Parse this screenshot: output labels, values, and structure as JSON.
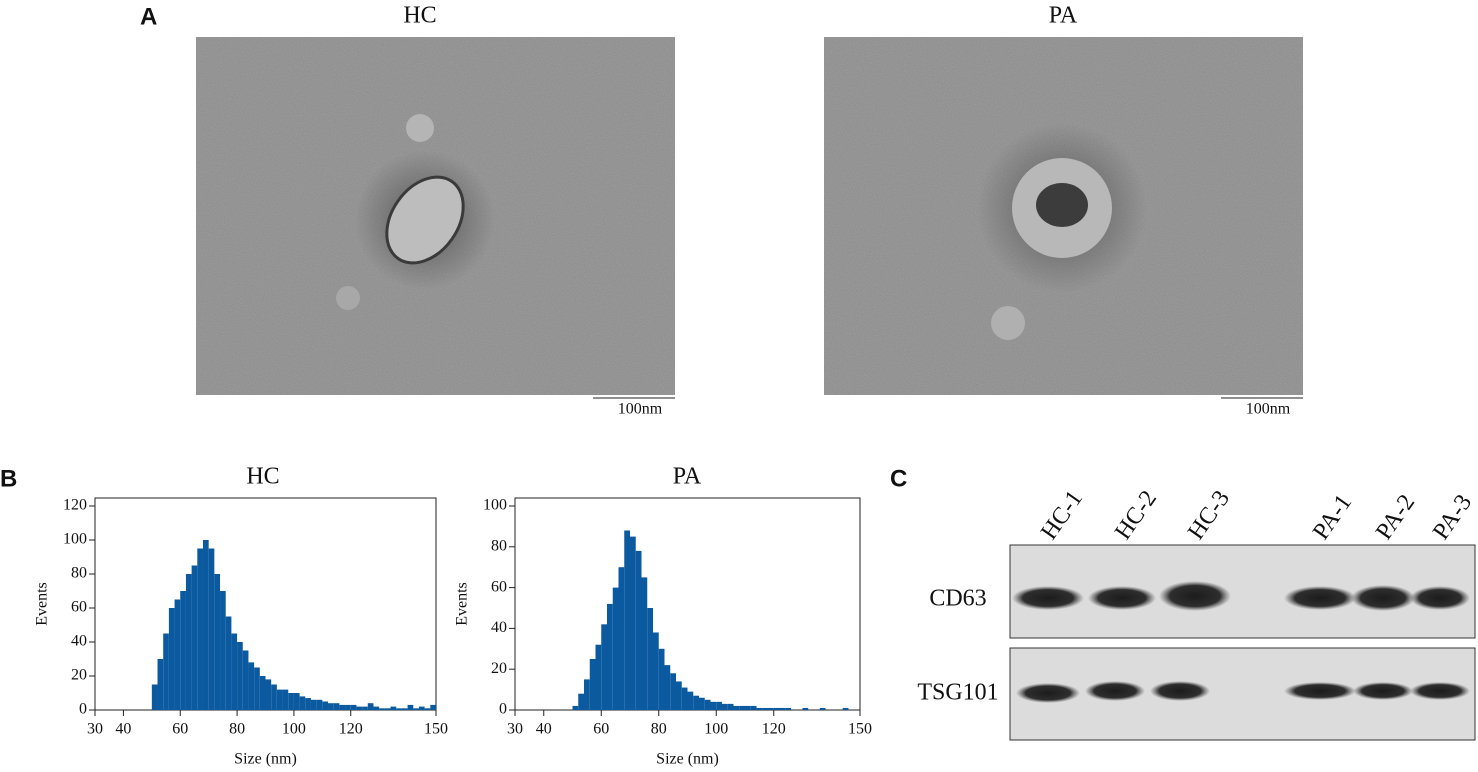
{
  "panels": {
    "a": {
      "label": "A",
      "images": [
        {
          "title": "HC",
          "scale_bar": "100nm"
        },
        {
          "title": "PA",
          "scale_bar": "100nm"
        }
      ]
    },
    "b": {
      "label": "B"
    },
    "c": {
      "label": "C",
      "lanes": [
        "HC-1",
        "HC-2",
        "HC-3",
        "PA-1",
        "PA-2",
        "PA-3"
      ],
      "rows": [
        "CD63",
        "TSG101"
      ]
    }
  },
  "chart_data": [
    {
      "type": "histogram",
      "title": "HC",
      "x_label": "Size (nm)",
      "y_label": "Events",
      "color": "#0b5aa0",
      "bins": [
        50,
        52,
        54,
        56,
        58,
        60,
        62,
        64,
        66,
        68,
        70,
        72,
        74,
        76,
        78,
        80,
        82,
        84,
        86,
        88,
        90,
        92,
        94,
        96,
        98,
        100,
        102,
        104,
        106,
        108,
        110,
        112,
        114,
        116,
        118,
        120,
        122,
        124,
        126,
        128,
        130,
        132,
        134,
        136,
        138,
        140,
        142,
        144,
        146,
        148,
        150
      ],
      "values": [
        15,
        30,
        45,
        60,
        65,
        70,
        80,
        85,
        95,
        100,
        95,
        80,
        70,
        55,
        45,
        40,
        35,
        28,
        25,
        20,
        18,
        15,
        12,
        12,
        10,
        10,
        8,
        7,
        6,
        6,
        5,
        4,
        4,
        3,
        3,
        3,
        2,
        2,
        4,
        2,
        1,
        1,
        2,
        1,
        1,
        3,
        1,
        2,
        1,
        3
      ],
      "xlim": [
        30,
        150
      ],
      "xticks": [
        30,
        40,
        60,
        80,
        100,
        120,
        150
      ],
      "ylim": [
        0,
        120
      ],
      "yticks": [
        0,
        20,
        40,
        60,
        80,
        100,
        120
      ]
    },
    {
      "type": "histogram",
      "title": "PA",
      "x_label": "Size (nm)",
      "y_label": "Events",
      "color": "#0b5aa0",
      "bins": [
        50,
        52,
        54,
        56,
        58,
        60,
        62,
        64,
        66,
        68,
        70,
        72,
        74,
        76,
        78,
        80,
        82,
        84,
        86,
        88,
        90,
        92,
        94,
        96,
        98,
        100,
        102,
        104,
        106,
        108,
        110,
        112,
        114,
        116,
        118,
        120,
        122,
        124,
        126,
        128,
        130,
        132,
        134,
        136,
        138,
        140,
        142,
        144,
        146,
        148,
        150
      ],
      "values": [
        2,
        8,
        15,
        25,
        32,
        42,
        52,
        60,
        70,
        88,
        85,
        78,
        65,
        50,
        38,
        30,
        22,
        18,
        14,
        11,
        9,
        7,
        6,
        5,
        4,
        4,
        3,
        3,
        2,
        2,
        2,
        2,
        1,
        1,
        1,
        1,
        1,
        1,
        0,
        0,
        1,
        0,
        0,
        1,
        0,
        0,
        0,
        1,
        0,
        0
      ],
      "xlim": [
        30,
        150
      ],
      "xticks": [
        30,
        40,
        60,
        80,
        100,
        120,
        150
      ],
      "ylim": [
        0,
        100
      ],
      "yticks": [
        0,
        20,
        40,
        60,
        80,
        100
      ]
    }
  ]
}
